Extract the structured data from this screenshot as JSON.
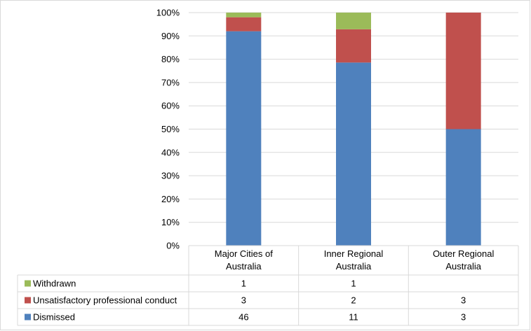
{
  "chart_data": {
    "type": "bar",
    "stacked": true,
    "percent_stacked": true,
    "categories": [
      [
        "Major Cities of",
        "Australia"
      ],
      [
        "Inner Regional",
        "Australia"
      ],
      [
        "Outer Regional",
        "Australia"
      ]
    ],
    "series": [
      {
        "name": "Dismissed",
        "values": [
          46,
          11,
          3
        ],
        "color": "#4f81bd"
      },
      {
        "name": "Unsatisfactory professional conduct",
        "values": [
          3,
          2,
          3
        ],
        "color": "#c0504d"
      },
      {
        "name": "Withdrawn",
        "values": [
          1,
          1,
          null
        ],
        "color": "#9bbb59"
      }
    ],
    "table_row_order": [
      "Withdrawn",
      "Unsatisfactory professional conduct",
      "Dismissed"
    ],
    "yticks": [
      "0%",
      "10%",
      "20%",
      "30%",
      "40%",
      "50%",
      "60%",
      "70%",
      "80%",
      "90%",
      "100%"
    ],
    "ylim": [
      0,
      100
    ],
    "grid": true,
    "legend": "data-table"
  }
}
